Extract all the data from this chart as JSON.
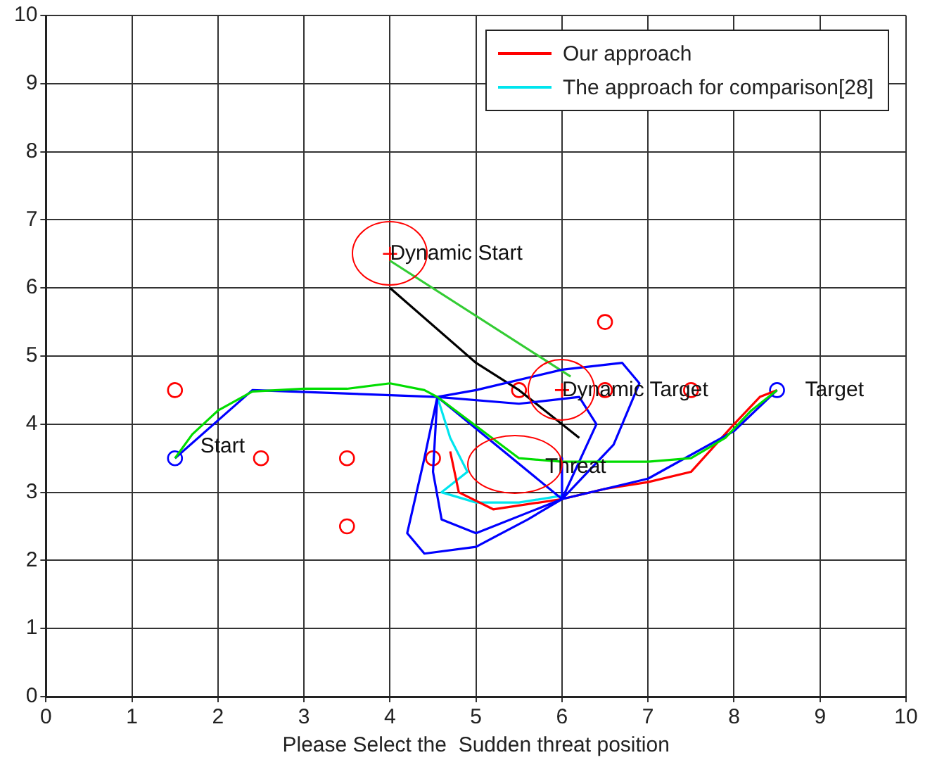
{
  "chart_data": {
    "type": "line",
    "xlabel": "Please Select the  Sudden threat position",
    "xlim": [
      0,
      10
    ],
    "ylim": [
      0,
      10
    ],
    "xticks": [
      0,
      1,
      2,
      3,
      4,
      5,
      6,
      7,
      8,
      9,
      10
    ],
    "yticks": [
      0,
      1,
      2,
      3,
      4,
      5,
      6,
      7,
      8,
      9,
      10
    ],
    "grid": true,
    "legend": "top right",
    "line_style": "solid",
    "series": [
      {
        "type": "line",
        "marker": "none",
        "color": "#00dd00",
        "x": [
          1.5,
          1.7,
          2,
          2.4,
          3,
          3.5,
          4,
          4.4,
          4.55,
          5.5,
          6,
          7,
          7.5,
          7.9,
          8.2,
          8.5
        ],
        "values": [
          3.5,
          3.85,
          4.2,
          4.48,
          4.52,
          4.52,
          4.6,
          4.5,
          4.4,
          3.5,
          3.45,
          3.45,
          3.5,
          3.8,
          4.2,
          4.5
        ]
      },
      {
        "type": "line",
        "marker": "none",
        "color": "#0000ff",
        "x": [
          1.5,
          2.4,
          4.55,
          4.4,
          4.2,
          4.4,
          5,
          5.6,
          6,
          4.55,
          4.5,
          4.6,
          5,
          6,
          4.55,
          5,
          6,
          6.7,
          6.9,
          6.6,
          6,
          4.55,
          5.5,
          6.2,
          6.4,
          6,
          6,
          6,
          7,
          8,
          8.5
        ],
        "values": [
          3.5,
          4.5,
          4.4,
          3.5,
          2.4,
          2.1,
          2.2,
          2.6,
          2.9,
          4.4,
          3.3,
          2.6,
          2.4,
          2.9,
          4.4,
          4.5,
          4.8,
          4.9,
          4.6,
          3.7,
          2.9,
          4.4,
          4.3,
          4.4,
          4.0,
          2.9,
          3.5,
          2.9,
          3.2,
          3.9,
          4.5
        ]
      },
      {
        "type": "line",
        "marker": "none",
        "name": "Our approach",
        "color": "#ff0000",
        "x": [
          4.7,
          4.8,
          5.2,
          6,
          6.5,
          7,
          7.5,
          8,
          8.3,
          8.5
        ],
        "values": [
          3.6,
          3.0,
          2.75,
          2.9,
          3.05,
          3.15,
          3.3,
          4.0,
          4.4,
          4.5
        ]
      },
      {
        "type": "line",
        "marker": "none",
        "name": "The approach for comparison[28]",
        "color": "#00e5ee",
        "x": [
          4.55,
          4.7,
          4.9,
          4.6,
          5,
          5.5,
          6
        ],
        "values": [
          4.4,
          3.8,
          3.3,
          3.0,
          2.85,
          2.85,
          2.95
        ]
      },
      {
        "type": "line",
        "marker": "none",
        "color": "#000000",
        "x": [
          4,
          5,
          5.5,
          6.2
        ],
        "values": [
          6,
          4.9,
          4.5,
          3.8
        ]
      },
      {
        "type": "line",
        "marker": "none",
        "color": "#33cc33",
        "x": [
          4,
          6.1
        ],
        "values": [
          6.4,
          4.7
        ]
      },
      {
        "type": "scatter",
        "marker": "circle",
        "color": "#ff0000",
        "x": [
          1.5,
          2.5,
          3.5,
          3.5,
          4.5,
          5.5,
          6.5,
          6.5,
          7.5
        ],
        "values": [
          4.5,
          3.5,
          3.5,
          2.5,
          3.5,
          4.5,
          5.5,
          4.5,
          4.5
        ]
      },
      {
        "type": "scatter",
        "marker": "cross",
        "color": "#ff0000",
        "x": [
          4,
          6
        ],
        "values": [
          6.5,
          4.5
        ]
      },
      {
        "type": "scatter",
        "marker": "circle",
        "color": "#0000ff",
        "x": [
          1.5,
          8.5
        ],
        "values": [
          3.5,
          4.5
        ]
      }
    ],
    "annotations": [
      {
        "text": "Start",
        "x": 1.5,
        "y": 3.5
      },
      {
        "text": "Dynamic Start",
        "x": 4,
        "y": 6.5
      },
      {
        "text": "Dynamic Target",
        "x": 6,
        "y": 4.5
      },
      {
        "text": "Threat",
        "x": 6,
        "y": 3.45
      },
      {
        "text": "Target",
        "x": 8.5,
        "y": 4.5
      }
    ]
  }
}
